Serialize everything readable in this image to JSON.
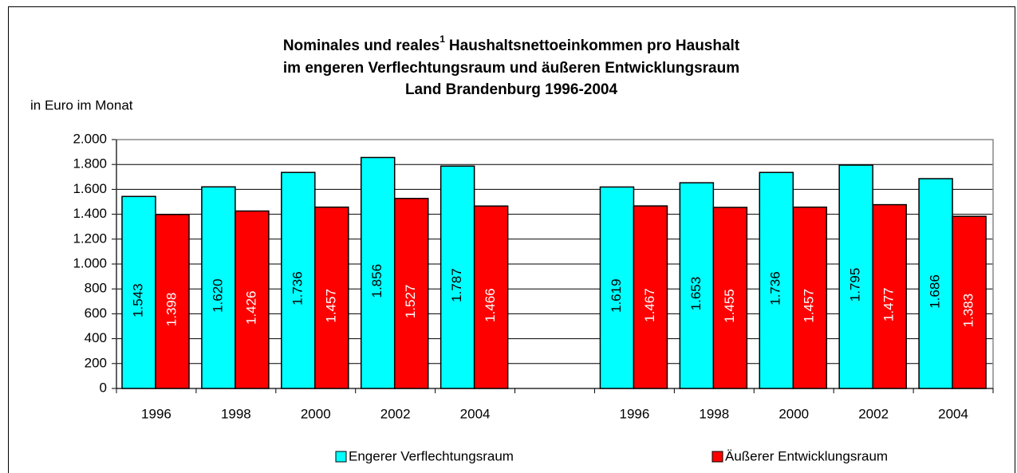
{
  "chart_data": {
    "type": "bar",
    "title": {
      "line1": "Nominales und reales",
      "footnote_mark": "1",
      "line1_rest": "Haushaltsnettoeinkommen pro Haushalt",
      "line2": "im engeren Verflechtungsraum und äußeren Entwicklungsraum",
      "line3": "Land Brandenburg 1996-2004"
    },
    "y_label": "in Euro im Monat",
    "categories": [
      "1996",
      "1998",
      "2000",
      "2002",
      "2004",
      null,
      "1996",
      "1998",
      "2000",
      "2002",
      "2004"
    ],
    "series": [
      {
        "name": "Engerer Verflechtungsraum",
        "color": "#00ffff",
        "label_color": "#000000",
        "values": [
          1543,
          1620,
          1736,
          1856,
          1787,
          null,
          1619,
          1653,
          1736,
          1795,
          1686
        ],
        "value_labels": [
          "1.543",
          "1.620",
          "1.736",
          "1.856",
          "1.787",
          null,
          "1.619",
          "1.653",
          "1.736",
          "1.795",
          "1.686"
        ]
      },
      {
        "name": "Äußerer Entwicklungsraum",
        "color": "#ff0000",
        "label_color": "#ffffff",
        "values": [
          1398,
          1426,
          1457,
          1527,
          1466,
          null,
          1467,
          1455,
          1457,
          1477,
          1383
        ],
        "value_labels": [
          "1.398",
          "1.426",
          "1.457",
          "1.527",
          "1.466",
          null,
          "1.467",
          "1.455",
          "1.457",
          "1.477",
          "1.383"
        ]
      }
    ],
    "ylim": [
      0,
      2000
    ],
    "yticks": [
      0,
      200,
      400,
      600,
      800,
      {
        "value": 1000,
        "label": "1.000"
      },
      {
        "value": 1200,
        "label": "1.200"
      },
      {
        "value": 1400,
        "label": "1.400"
      },
      {
        "value": 1600,
        "label": "1.600"
      },
      {
        "value": 1800,
        "label": "1.800"
      },
      {
        "value": 2000,
        "label": "2.000"
      }
    ],
    "grid": true,
    "legend": "bottom"
  }
}
